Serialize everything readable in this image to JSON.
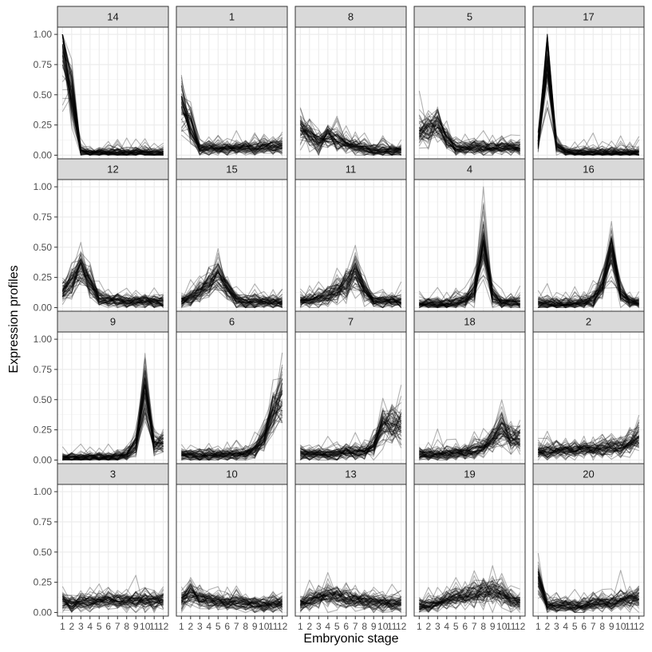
{
  "chart_data": {
    "type": "line",
    "xlabel": "Embryonic stage",
    "ylabel": "Expression profiles",
    "x": [
      1,
      2,
      3,
      4,
      5,
      6,
      7,
      8,
      9,
      10,
      11,
      12
    ],
    "x_tick_labels": [
      "1",
      "2",
      "3",
      "4",
      "5",
      "6",
      "7",
      "8",
      "9",
      "10",
      "11",
      "12"
    ],
    "ylim": [
      -0.03,
      1.06
    ],
    "y_ticks": [
      0,
      0.25,
      0.5,
      0.75,
      1.0
    ],
    "y_tick_labels": [
      "0.00",
      "0.25",
      "0.50",
      "0.75",
      "1.00"
    ],
    "grid": true,
    "facet_layout": {
      "rows": 4,
      "cols": 5
    },
    "panels": [
      {
        "label": "14",
        "center": [
          0.85,
          0.5,
          0.04,
          0.02,
          0.02,
          0.02,
          0.02,
          0.02,
          0.02,
          0.02,
          0.02,
          0.02
        ]
      },
      {
        "label": "1",
        "center": [
          0.42,
          0.25,
          0.05,
          0.05,
          0.05,
          0.05,
          0.06,
          0.06,
          0.06,
          0.07,
          0.07,
          0.08
        ]
      },
      {
        "label": "8",
        "center": [
          0.22,
          0.17,
          0.1,
          0.15,
          0.13,
          0.1,
          0.07,
          0.05,
          0.04,
          0.04,
          0.04,
          0.04
        ]
      },
      {
        "label": "5",
        "center": [
          0.2,
          0.22,
          0.25,
          0.13,
          0.06,
          0.06,
          0.06,
          0.06,
          0.06,
          0.06,
          0.06,
          0.07
        ]
      },
      {
        "label": "17",
        "center": [
          0.1,
          0.8,
          0.08,
          0.02,
          0.02,
          0.02,
          0.02,
          0.02,
          0.02,
          0.02,
          0.02,
          0.02
        ]
      },
      {
        "label": "12",
        "center": [
          0.12,
          0.2,
          0.32,
          0.2,
          0.08,
          0.06,
          0.06,
          0.05,
          0.05,
          0.05,
          0.05,
          0.05
        ]
      },
      {
        "label": "15",
        "center": [
          0.05,
          0.08,
          0.13,
          0.2,
          0.26,
          0.15,
          0.07,
          0.05,
          0.05,
          0.05,
          0.04,
          0.04
        ]
      },
      {
        "label": "11",
        "center": [
          0.06,
          0.06,
          0.07,
          0.1,
          0.14,
          0.2,
          0.3,
          0.14,
          0.06,
          0.05,
          0.05,
          0.05
        ]
      },
      {
        "label": "4",
        "center": [
          0.03,
          0.03,
          0.03,
          0.03,
          0.04,
          0.06,
          0.15,
          0.55,
          0.1,
          0.04,
          0.04,
          0.04
        ]
      },
      {
        "label": "16",
        "center": [
          0.03,
          0.03,
          0.03,
          0.03,
          0.03,
          0.04,
          0.07,
          0.18,
          0.48,
          0.12,
          0.04,
          0.04
        ]
      },
      {
        "label": "9",
        "center": [
          0.02,
          0.02,
          0.02,
          0.02,
          0.02,
          0.02,
          0.03,
          0.04,
          0.12,
          0.55,
          0.12,
          0.15
        ]
      },
      {
        "label": "6",
        "center": [
          0.04,
          0.04,
          0.04,
          0.04,
          0.04,
          0.04,
          0.05,
          0.05,
          0.08,
          0.18,
          0.42,
          0.5
        ]
      },
      {
        "label": "7",
        "center": [
          0.06,
          0.05,
          0.05,
          0.05,
          0.05,
          0.06,
          0.06,
          0.07,
          0.12,
          0.28,
          0.3,
          0.3
        ]
      },
      {
        "label": "18",
        "center": [
          0.05,
          0.05,
          0.05,
          0.05,
          0.06,
          0.06,
          0.08,
          0.11,
          0.16,
          0.26,
          0.18,
          0.17
        ]
      },
      {
        "label": "2",
        "center": [
          0.07,
          0.08,
          0.08,
          0.08,
          0.08,
          0.08,
          0.09,
          0.09,
          0.1,
          0.11,
          0.15,
          0.18
        ]
      },
      {
        "label": "3",
        "center": [
          0.1,
          0.07,
          0.08,
          0.08,
          0.09,
          0.1,
          0.1,
          0.1,
          0.1,
          0.1,
          0.09,
          0.1
        ]
      },
      {
        "label": "10",
        "center": [
          0.1,
          0.17,
          0.12,
          0.1,
          0.09,
          0.08,
          0.08,
          0.07,
          0.07,
          0.07,
          0.07,
          0.07
        ]
      },
      {
        "label": "13",
        "center": [
          0.06,
          0.09,
          0.12,
          0.15,
          0.13,
          0.12,
          0.11,
          0.1,
          0.09,
          0.08,
          0.08,
          0.08
        ]
      },
      {
        "label": "19",
        "center": [
          0.05,
          0.06,
          0.08,
          0.1,
          0.12,
          0.13,
          0.15,
          0.17,
          0.19,
          0.16,
          0.1,
          0.08
        ]
      },
      {
        "label": "20",
        "center": [
          0.25,
          0.06,
          0.05,
          0.05,
          0.05,
          0.06,
          0.07,
          0.08,
          0.09,
          0.1,
          0.11,
          0.12
        ]
      }
    ],
    "line_color": "#000000",
    "line_opacity": 0.3
  }
}
